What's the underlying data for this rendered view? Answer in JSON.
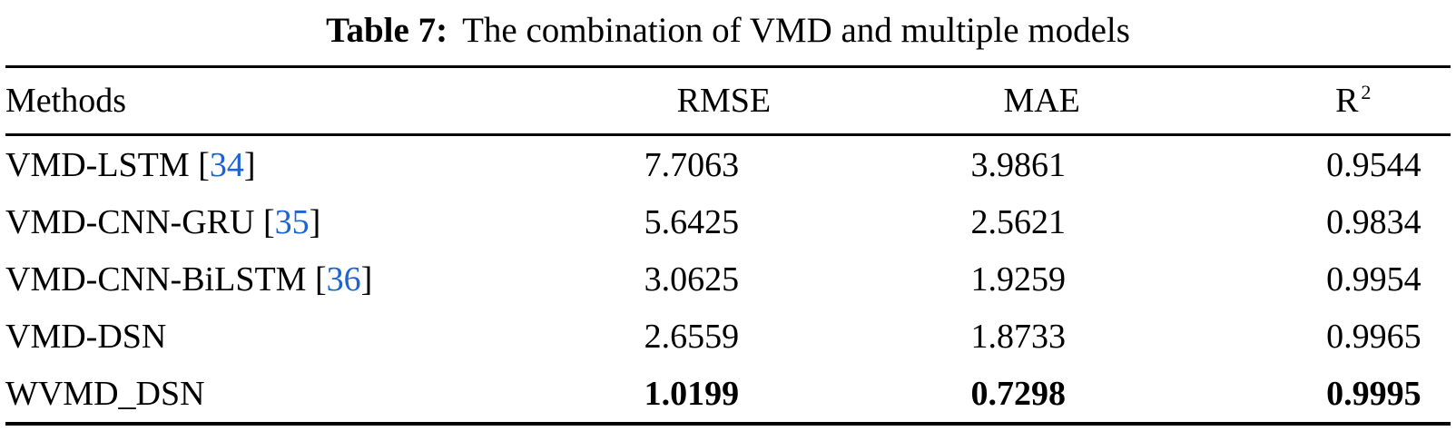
{
  "title": {
    "label": "Table 7:",
    "text": "The combination of VMD and multiple models"
  },
  "colors": {
    "reference_link": "#1b64d2",
    "text": "#000000",
    "rule": "#000000",
    "background": "#ffffff"
  },
  "table": {
    "columns": [
      {
        "id": "methods",
        "label": "Methods"
      },
      {
        "id": "rmse",
        "label": "RMSE"
      },
      {
        "id": "mae",
        "label": "MAE"
      },
      {
        "id": "r2",
        "label": "R",
        "sup": "2"
      }
    ],
    "rows": [
      {
        "method": "VMD-LSTM",
        "ref": "34",
        "rmse": "7.7063",
        "mae": "3.9861",
        "r2": "0.9544",
        "bold_values": false
      },
      {
        "method": "VMD-CNN-GRU",
        "ref": "35",
        "rmse": "5.6425",
        "mae": "2.5621",
        "r2": "0.9834",
        "bold_values": false
      },
      {
        "method": "VMD-CNN-BiLSTM",
        "ref": "36",
        "rmse": "3.0625",
        "mae": "1.9259",
        "r2": "0.9954",
        "bold_values": false
      },
      {
        "method": "VMD-DSN",
        "ref": null,
        "rmse": "2.6559",
        "mae": "1.8733",
        "r2": "0.9965",
        "bold_values": false
      },
      {
        "method": "WVMD_DSN",
        "ref": null,
        "rmse": "1.0199",
        "mae": "0.7298",
        "r2": "0.9995",
        "bold_values": true
      }
    ]
  }
}
